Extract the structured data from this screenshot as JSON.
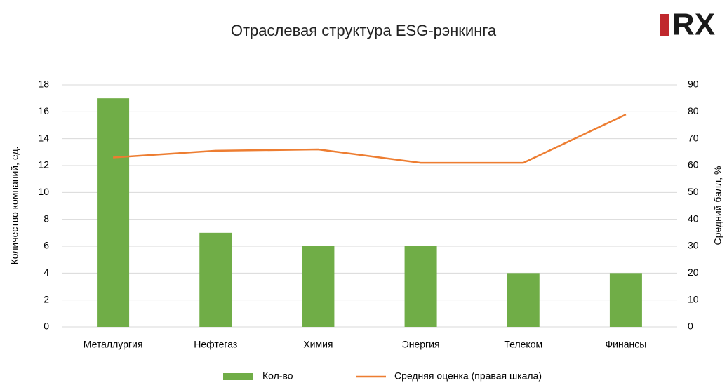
{
  "logo": "RX",
  "chart_data": {
    "type": "bar_line",
    "title": "Отраслевая структура ESG-рэнкинга",
    "ylabel": "Количество компаний, ед.",
    "y2label": "Средний балл, %",
    "categories": [
      "Металлургия",
      "Нефтегаз",
      "Химия",
      "Энергия",
      "Телеком",
      "Финансы"
    ],
    "series": [
      {
        "name": "Кол-во",
        "type": "bar",
        "color": "#70ad47",
        "values": [
          17,
          7,
          6,
          6,
          4,
          4
        ]
      },
      {
        "name": "Средняя оценка (правая шкала)",
        "type": "line",
        "axis": "y2",
        "color": "#ed7d31",
        "values": [
          63,
          65.5,
          66,
          61,
          61,
          79
        ]
      }
    ],
    "ylim": [
      0,
      18
    ],
    "yticks": [
      0,
      2,
      4,
      6,
      8,
      10,
      12,
      14,
      16,
      18
    ],
    "y2lim": [
      0,
      90
    ],
    "y2ticks": [
      0,
      10,
      20,
      30,
      40,
      50,
      60,
      70,
      80,
      90
    ],
    "grid": true,
    "legend": "bottom"
  }
}
